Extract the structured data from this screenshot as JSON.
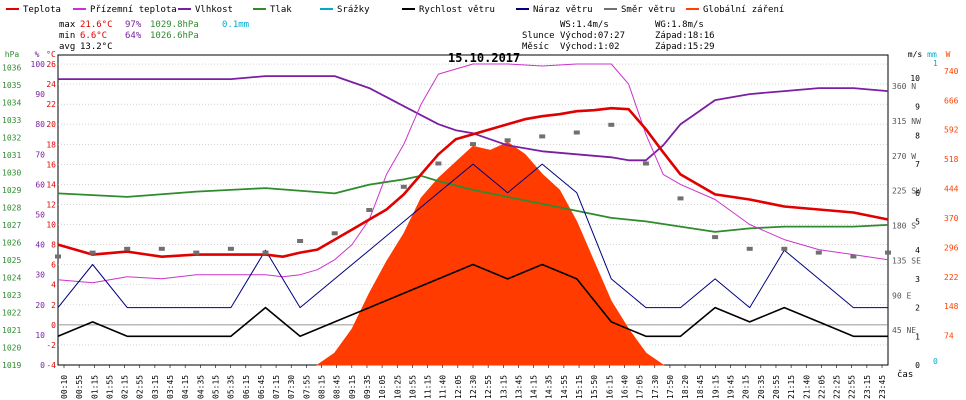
{
  "legend": [
    {
      "label": "Teplota",
      "color": "#e00000"
    },
    {
      "label": "Přízemní teplota",
      "color": "#cc33cc"
    },
    {
      "label": "Vlhkost",
      "color": "#7a1fa2"
    },
    {
      "label": "Tlak",
      "color": "#2e8b2e"
    },
    {
      "label": "Srážky",
      "color": "#00aacc"
    },
    {
      "label": "Rychlost větru",
      "color": "#000000"
    },
    {
      "label": "Náraz větru",
      "color": "#000080"
    },
    {
      "label": "Směr větru",
      "color": "#707070"
    },
    {
      "label": "Globální záření",
      "color": "#ff4000"
    }
  ],
  "stats": {
    "max": {
      "label": "max",
      "temp": "21.6°C",
      "hum": "97%",
      "press": "1029.8hPa",
      "rain": "0.1mm"
    },
    "min": {
      "label": "min",
      "temp": "6.6°C",
      "hum": "64%",
      "press": "1026.6hPa"
    },
    "avg": {
      "label": "avg",
      "temp": "13.2°C"
    }
  },
  "sun": {
    "ws": "WS:1.4m/s",
    "wg": "WG:1.8m/s",
    "slunce_label": "Slunce",
    "slunce_vychod": "Východ:07:27",
    "slunce_zapad": "Západ:18:16",
    "mesic_label": "Měsíc",
    "mesic_vychod": "Východ:1:02",
    "mesic_zapad": "Západ:15:29"
  },
  "chart_data": {
    "type": "line",
    "title": "15.10.2017",
    "xlabel": "čas",
    "x_ticks": [
      "00:10",
      "00:55",
      "01:15",
      "01:55",
      "02:15",
      "02:55",
      "03:15",
      "03:45",
      "04:15",
      "04:35",
      "05:15",
      "05:35",
      "06:15",
      "06:45",
      "07:15",
      "07:30",
      "07:55",
      "08:15",
      "08:45",
      "09:15",
      "09:35",
      "10:05",
      "10:25",
      "10:55",
      "11:15",
      "11:40",
      "12:05",
      "12:30",
      "12:55",
      "13:15",
      "13:45",
      "14:15",
      "14:35",
      "14:55",
      "15:15",
      "15:50",
      "16:15",
      "16:40",
      "17:05",
      "17:30",
      "17:50",
      "18:20",
      "18:45",
      "19:15",
      "19:45",
      "20:15",
      "20:35",
      "20:55",
      "21:15",
      "21:40",
      "22:05",
      "22:25",
      "22:55",
      "23:15",
      "23:45"
    ],
    "axes": {
      "pressure": {
        "label": "hPa",
        "ticks": [
          "1036",
          "1035",
          "1034",
          "1033",
          "1032",
          "1031",
          "1030",
          "1029",
          "1028",
          "1027",
          "1026",
          "1025",
          "1024",
          "1023",
          "1022",
          "1021",
          "1020",
          "1019"
        ]
      },
      "humidity": {
        "label": "%",
        "ticks": [
          "100",
          "90",
          "80",
          "70",
          "60",
          "50",
          "40",
          "30",
          "20",
          "10",
          "0"
        ]
      },
      "temperature": {
        "label": "°C",
        "ticks": [
          "26",
          "24",
          "22",
          "20",
          "18",
          "16",
          "14",
          "12",
          "10",
          "8",
          "6",
          "4",
          "2",
          "0",
          "-2",
          "-4"
        ]
      },
      "wind_speed": {
        "label": "m/s",
        "ticks": [
          "10",
          "9",
          "8",
          "7",
          "6",
          "5",
          "4",
          "3",
          "2",
          "1",
          "0"
        ]
      },
      "wind_dir": {
        "ticks": [
          "360 N",
          "315 NW",
          "270 W",
          "225 SW",
          "180 S",
          "135 SE",
          "90 E",
          "45 NE"
        ]
      },
      "rain": {
        "label": "mm",
        "ticks": [
          "1",
          "0"
        ]
      },
      "radiation": {
        "label": "W",
        "ticks": [
          "740",
          "666",
          "592",
          "518",
          "444",
          "370",
          "296",
          "222",
          "148",
          "74"
        ]
      }
    },
    "series": [
      {
        "name": "Teplota",
        "unit": "°C",
        "x": [
          0,
          1,
          2,
          3,
          4,
          5,
          6,
          6.5,
          7,
          7.5,
          8,
          8.5,
          9,
          9.5,
          10,
          10.5,
          11,
          11.5,
          12,
          12.5,
          13,
          13.5,
          14,
          14.5,
          15,
          15.5,
          16,
          16.5,
          17,
          17.5,
          18,
          19,
          20,
          21,
          22,
          23,
          24
        ],
        "y": [
          8,
          7,
          7.3,
          6.8,
          7,
          7,
          7,
          6.8,
          7.2,
          7.5,
          8.5,
          9.5,
          10.5,
          11.5,
          13,
          15,
          17,
          18.5,
          19,
          19.5,
          20,
          20.5,
          20.8,
          21,
          21.3,
          21.4,
          21.6,
          21.5,
          19.5,
          17.2,
          15,
          13,
          12.5,
          11.8,
          11.5,
          11.2,
          10.5
        ]
      },
      {
        "name": "Přízemní teplota",
        "unit": "°C",
        "x": [
          0,
          1,
          2,
          3,
          4,
          5,
          6,
          6.5,
          7,
          7.5,
          8,
          8.5,
          9,
          9.5,
          10,
          10.5,
          11,
          12,
          13,
          14,
          15,
          16,
          16.5,
          17,
          17.5,
          18,
          19,
          20,
          21,
          22,
          23,
          24
        ],
        "y": [
          4.5,
          4.2,
          4.8,
          4.6,
          5,
          5,
          5,
          4.8,
          5,
          5.5,
          6.5,
          8,
          10.5,
          15,
          18,
          22,
          25,
          26,
          26,
          25.8,
          26,
          26,
          24,
          19,
          15,
          14,
          12.5,
          10,
          8.5,
          7.5,
          7,
          6.5
        ]
      },
      {
        "name": "Vlhkost",
        "unit": "%",
        "x": [
          0,
          1,
          2,
          3,
          4,
          5,
          6,
          7,
          8,
          8.5,
          9,
          9.5,
          10,
          10.5,
          11,
          11.5,
          12,
          12.5,
          13,
          14,
          15,
          16,
          16.5,
          17,
          17.5,
          18,
          18.5,
          19,
          20,
          21,
          22,
          23,
          24
        ],
        "y": [
          95,
          95,
          95,
          95,
          95,
          95,
          96,
          96,
          96,
          94,
          92,
          89,
          86,
          83,
          80,
          78,
          77,
          75,
          73,
          71,
          70,
          69,
          68,
          68,
          73,
          80,
          84,
          88,
          90,
          91,
          92,
          92,
          91
        ]
      },
      {
        "name": "Tlak",
        "unit": "hPa",
        "x": [
          0,
          2,
          4,
          6,
          8,
          9,
          10,
          10.5,
          11,
          12,
          13,
          14,
          15,
          16,
          17,
          18,
          19,
          20,
          21,
          22,
          23,
          24
        ],
        "y": [
          1028.8,
          1028.6,
          1028.9,
          1029.1,
          1028.8,
          1029.3,
          1029.6,
          1029.8,
          1029.5,
          1029.0,
          1028.6,
          1028.2,
          1027.8,
          1027.4,
          1027.2,
          1026.9,
          1026.6,
          1026.8,
          1026.9,
          1026.9,
          1026.9,
          1027.0
        ]
      },
      {
        "name": "Globální záření",
        "unit": "W",
        "x": [
          7.5,
          8,
          8.5,
          9,
          9.5,
          10,
          10.5,
          11,
          11.5,
          12,
          12.5,
          13,
          13.5,
          14,
          14.5,
          15,
          15.5,
          16,
          16.5,
          17,
          17.5
        ],
        "y": [
          0,
          30,
          90,
          180,
          260,
          330,
          420,
          470,
          510,
          550,
          540,
          560,
          530,
          480,
          440,
          360,
          260,
          160,
          90,
          30,
          0
        ]
      },
      {
        "name": "Rychlost větru",
        "unit": "m/s",
        "x": [
          0,
          1,
          2,
          3,
          4,
          5,
          6,
          7,
          8,
          9,
          10,
          11,
          12,
          13,
          14,
          15,
          16,
          17,
          18,
          19,
          20,
          21,
          22,
          23,
          24
        ],
        "y": [
          1,
          1.5,
          1,
          1,
          1,
          1,
          2,
          1,
          1.5,
          2,
          2.5,
          3,
          3.5,
          3,
          3.5,
          3,
          1.5,
          1,
          1,
          2,
          1.5,
          2,
          1.5,
          1,
          1
        ]
      },
      {
        "name": "Náraz větru",
        "unit": "m/s",
        "x": [
          0,
          1,
          2,
          3,
          4,
          5,
          6,
          7,
          8,
          9,
          10,
          11,
          12,
          13,
          14,
          15,
          16,
          17,
          18,
          19,
          20,
          21,
          22,
          23,
          24
        ],
        "y": [
          2,
          3.5,
          2,
          2,
          2,
          2,
          4,
          2,
          3,
          4,
          5,
          6,
          7,
          6,
          7,
          6,
          3,
          2,
          2,
          3,
          2,
          4,
          3,
          2,
          2
        ]
      },
      {
        "name": "Směr větru",
        "unit": "°",
        "x": [
          0,
          1,
          2,
          3,
          4,
          5,
          6,
          7,
          8,
          9,
          10,
          11,
          12,
          13,
          14,
          15,
          16,
          17,
          18,
          19,
          20,
          21,
          22,
          23,
          24
        ],
        "y": [
          140,
          145,
          150,
          150,
          145,
          150,
          145,
          160,
          170,
          200,
          230,
          260,
          285,
          290,
          295,
          300,
          310,
          260,
          215,
          165,
          150,
          150,
          145,
          140,
          145
        ]
      }
    ]
  }
}
